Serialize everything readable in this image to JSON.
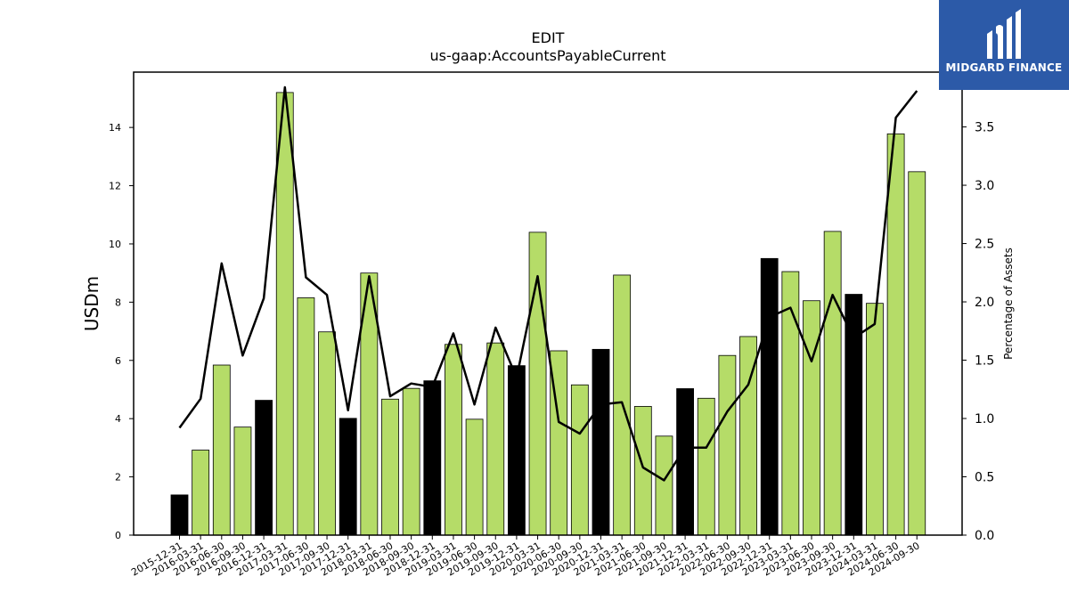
{
  "chart_data": {
    "type": "bar",
    "title": "EDIT",
    "subtitle": "us-gaap:AccountsPayableCurrent",
    "ylabel": "USDm",
    "y2label": "Percentage of Assets",
    "ylim": [
      0,
      15.9
    ],
    "y2lim": [
      0,
      3.97
    ],
    "yticks": [
      0,
      2,
      4,
      6,
      8,
      10,
      12,
      14
    ],
    "y2ticks": [
      "0.0",
      "0.5",
      "1.0",
      "1.5",
      "2.0",
      "2.5",
      "3.0",
      "3.5"
    ],
    "categories": [
      "2015-12-31",
      "2016-03-31",
      "2016-06-30",
      "2016-09-30",
      "2016-12-31",
      "2017-03-31",
      "2017-06-30",
      "2017-09-30",
      "2017-12-31",
      "2018-03-31",
      "2018-06-30",
      "2018-09-30",
      "2018-12-31",
      "2019-03-31",
      "2019-06-30",
      "2019-09-30",
      "2019-12-31",
      "2020-03-31",
      "2020-06-30",
      "2020-09-30",
      "2020-12-31",
      "2021-03-31",
      "2021-06-30",
      "2021-09-30",
      "2021-12-31",
      "2022-03-31",
      "2022-06-30",
      "2022-09-30",
      "2022-12-31",
      "2023-03-31",
      "2023-06-30",
      "2023-09-30",
      "2023-12-31",
      "2024-03-31",
      "2024-06-30",
      "2024-09-30"
    ],
    "series": [
      {
        "type": "bar",
        "values": [
          1.38,
          2.92,
          5.84,
          3.71,
          4.63,
          15.2,
          8.15,
          6.98,
          4.01,
          9.0,
          4.67,
          5.04,
          5.3,
          6.55,
          3.98,
          6.6,
          5.82,
          10.4,
          6.33,
          5.16,
          6.38,
          8.93,
          4.42,
          3.4,
          5.03,
          4.7,
          6.17,
          6.82,
          9.5,
          9.05,
          8.05,
          10.43,
          8.27,
          7.96,
          13.78,
          12.48
        ],
        "highlight": [
          true,
          false,
          false,
          false,
          true,
          false,
          false,
          false,
          true,
          false,
          false,
          false,
          true,
          false,
          false,
          false,
          true,
          false,
          false,
          false,
          true,
          false,
          false,
          false,
          true,
          false,
          false,
          false,
          true,
          false,
          false,
          false,
          true,
          false,
          false,
          false
        ],
        "color": "#b5dc68",
        "highlight_color": "#000000"
      },
      {
        "type": "line",
        "axis": "right",
        "values": [
          0.92,
          1.17,
          2.33,
          1.54,
          2.03,
          3.84,
          2.21,
          2.06,
          1.07,
          2.22,
          1.19,
          1.3,
          1.27,
          1.73,
          1.12,
          1.78,
          1.35,
          2.22,
          0.97,
          0.87,
          1.12,
          1.14,
          0.58,
          0.47,
          0.75,
          0.75,
          1.06,
          1.29,
          1.87,
          1.95,
          1.49,
          2.06,
          1.69,
          1.81,
          3.58,
          3.81
        ],
        "color": "#000000"
      }
    ]
  },
  "logo": {
    "text": "MIDGARD FINANCE",
    "background": "#2c5aa8"
  }
}
